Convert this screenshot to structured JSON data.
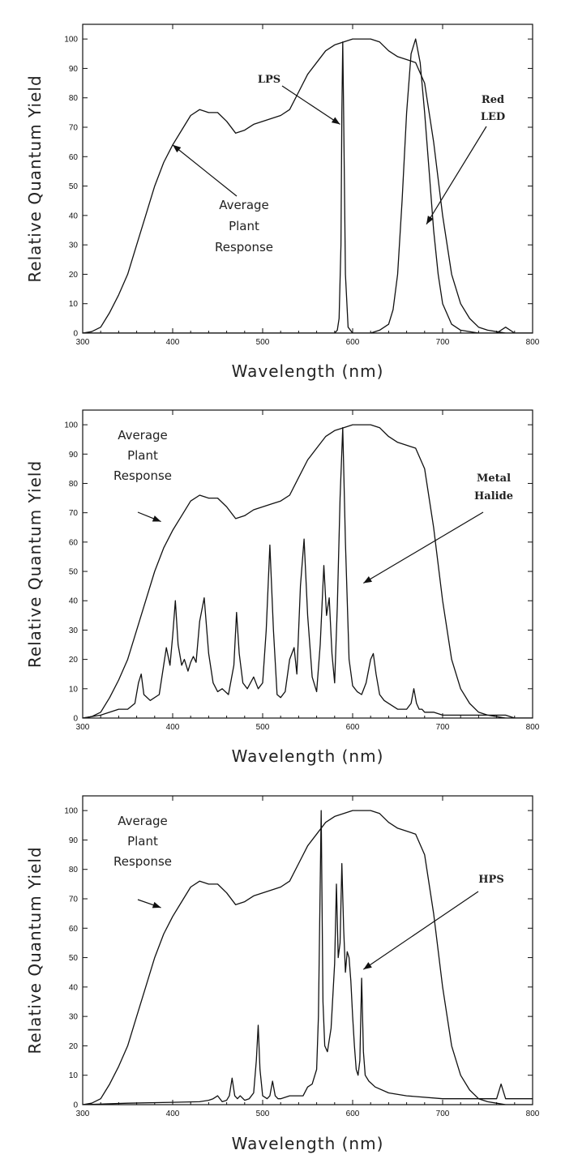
{
  "chart_data": [
    {
      "type": "line",
      "xlabel": "Wavelength (nm)",
      "ylabel": "Relative Quantum Yield",
      "xlim": [
        300,
        800
      ],
      "ylim": [
        0,
        105
      ],
      "xticks": [
        300,
        400,
        500,
        600,
        700,
        800
      ],
      "yticks": [
        0,
        10,
        20,
        30,
        40,
        50,
        60,
        70,
        80,
        90,
        100
      ],
      "grid": false,
      "annotations": [
        {
          "text": "Average",
          "arrow_to": [
            400,
            64
          ]
        },
        {
          "text": "Plant"
        },
        {
          "text": "Response"
        },
        {
          "text": "LPS",
          "arrow_to": [
            586,
            71
          ]
        },
        {
          "text": "Red",
          "arrow_to": [
            682,
            37
          ]
        },
        {
          "text": "LED"
        }
      ],
      "series": [
        {
          "x": [
            300,
            310,
            320,
            330,
            340,
            350,
            360,
            370,
            380,
            390,
            400,
            410,
            420,
            430,
            440,
            450,
            460,
            470,
            480,
            490,
            500,
            510,
            520,
            530,
            540,
            550,
            560,
            570,
            580,
            590,
            600,
            610,
            620,
            630,
            640,
            650,
            660,
            670,
            680,
            690,
            700,
            710,
            720,
            730,
            740,
            750,
            760,
            770,
            780,
            790,
            800
          ],
          "values": [
            0,
            0.5,
            2,
            7,
            13,
            20,
            30,
            40,
            50,
            58,
            64,
            69,
            74,
            76,
            75,
            75,
            72,
            68,
            69,
            71,
            72,
            73,
            74,
            76,
            82,
            88,
            92,
            96,
            98,
            99,
            100,
            100,
            100,
            99,
            96,
            94,
            93,
            92,
            85,
            65,
            40,
            20,
            10,
            5,
            2,
            1,
            0.5,
            0,
            0,
            0,
            0
          ]
        },
        {
          "x": [
            300,
            570,
            575,
            580,
            583,
            585,
            587,
            588,
            589,
            590,
            592,
            595,
            600,
            610,
            800
          ],
          "values": [
            0,
            0,
            0,
            0,
            1,
            5,
            30,
            75,
            99,
            75,
            20,
            2,
            0,
            0,
            0
          ]
        },
        {
          "x": [
            300,
            600,
            620,
            630,
            640,
            645,
            650,
            655,
            660,
            665,
            670,
            675,
            680,
            685,
            690,
            695,
            700,
            710,
            720,
            740,
            760,
            770,
            780,
            800
          ],
          "values": [
            0,
            0,
            0,
            1,
            3,
            8,
            20,
            45,
            75,
            95,
            100,
            92,
            75,
            55,
            35,
            20,
            10,
            3,
            1,
            0,
            0,
            2,
            0,
            0
          ]
        }
      ]
    },
    {
      "type": "line",
      "xlabel": "Wavelength (nm)",
      "ylabel": "Relative Quantum Yield",
      "xlim": [
        300,
        800
      ],
      "ylim": [
        0,
        105
      ],
      "xticks": [
        300,
        400,
        500,
        600,
        700,
        800
      ],
      "yticks": [
        0,
        10,
        20,
        30,
        40,
        50,
        60,
        70,
        80,
        90,
        100
      ],
      "grid": false,
      "annotations": [
        {
          "text": "Average",
          "arrow_to": [
            387,
            67
          ]
        },
        {
          "text": "Plant"
        },
        {
          "text": "Response"
        },
        {
          "text": "Metal",
          "arrow_to": [
            612,
            46
          ]
        },
        {
          "text": "Halide"
        }
      ],
      "series": [
        {
          "x": [
            300,
            310,
            320,
            330,
            340,
            350,
            360,
            370,
            380,
            390,
            400,
            410,
            420,
            430,
            440,
            450,
            460,
            470,
            480,
            490,
            500,
            510,
            520,
            530,
            540,
            550,
            560,
            570,
            580,
            590,
            600,
            610,
            620,
            630,
            640,
            650,
            660,
            670,
            680,
            690,
            700,
            710,
            720,
            730,
            740,
            750,
            760,
            770,
            780,
            790,
            800
          ],
          "values": [
            0,
            0.5,
            2,
            7,
            13,
            20,
            30,
            40,
            50,
            58,
            64,
            69,
            74,
            76,
            75,
            75,
            72,
            68,
            69,
            71,
            72,
            73,
            74,
            76,
            82,
            88,
            92,
            96,
            98,
            99,
            100,
            100,
            100,
            99,
            96,
            94,
            93,
            92,
            85,
            65,
            40,
            20,
            10,
            5,
            2,
            1,
            0.5,
            0,
            0,
            0,
            0
          ]
        },
        {
          "x": [
            300,
            320,
            330,
            340,
            350,
            358,
            362,
            365,
            368,
            375,
            385,
            390,
            393,
            397,
            400,
            403,
            406,
            410,
            413,
            417,
            420,
            423,
            426,
            430,
            435,
            440,
            445,
            450,
            455,
            462,
            468,
            471,
            474,
            478,
            483,
            490,
            495,
            500,
            504,
            508,
            512,
            516,
            520,
            525,
            530,
            535,
            538,
            542,
            546,
            550,
            555,
            560,
            564,
            568,
            571,
            574,
            577,
            580,
            583,
            586,
            589,
            592,
            596,
            600,
            605,
            610,
            615,
            620,
            623,
            626,
            630,
            635,
            640,
            650,
            660,
            665,
            668,
            671,
            674,
            677,
            680,
            690,
            700,
            720,
            750,
            760,
            770,
            780,
            800
          ],
          "values": [
            0,
            1,
            2,
            3,
            3,
            5,
            12,
            15,
            8,
            6,
            8,
            18,
            24,
            18,
            28,
            40,
            25,
            18,
            20,
            16,
            19,
            21,
            19,
            33,
            41,
            22,
            12,
            9,
            10,
            8,
            18,
            36,
            22,
            12,
            10,
            14,
            10,
            12,
            30,
            59,
            30,
            8,
            7,
            9,
            20,
            24,
            15,
            45,
            61,
            35,
            14,
            9,
            25,
            52,
            35,
            41,
            22,
            12,
            38,
            75,
            99,
            60,
            20,
            11,
            9,
            8,
            12,
            20,
            22,
            15,
            8,
            6,
            5,
            3,
            3,
            5,
            10,
            5,
            3,
            3,
            2,
            2,
            1,
            1,
            1,
            1,
            1,
            0,
            0
          ]
        }
      ]
    },
    {
      "type": "line",
      "xlabel": "Wavelength (nm)",
      "ylabel": "Relative Quantum Yield",
      "xlim": [
        300,
        800
      ],
      "ylim": [
        0,
        105
      ],
      "xticks": [
        300,
        400,
        500,
        600,
        700,
        800
      ],
      "yticks": [
        0,
        10,
        20,
        30,
        40,
        50,
        60,
        70,
        80,
        90,
        100
      ],
      "grid": false,
      "annotations": [
        {
          "text": "Average",
          "arrow_to": [
            387,
            67
          ]
        },
        {
          "text": "Plant"
        },
        {
          "text": "Response"
        },
        {
          "text": "HPS",
          "arrow_to": [
            612,
            46
          ]
        }
      ],
      "series": [
        {
          "x": [
            300,
            310,
            320,
            330,
            340,
            350,
            360,
            370,
            380,
            390,
            400,
            410,
            420,
            430,
            440,
            450,
            460,
            470,
            480,
            490,
            500,
            510,
            520,
            530,
            540,
            550,
            560,
            570,
            580,
            590,
            600,
            610,
            620,
            630,
            640,
            650,
            660,
            670,
            680,
            690,
            700,
            710,
            720,
            730,
            740,
            750,
            760,
            770,
            780,
            790,
            800
          ],
          "values": [
            0,
            0.5,
            2,
            7,
            13,
            20,
            30,
            40,
            50,
            58,
            64,
            69,
            74,
            76,
            75,
            75,
            72,
            68,
            69,
            71,
            72,
            73,
            74,
            76,
            82,
            88,
            92,
            96,
            98,
            99,
            100,
            100,
            100,
            99,
            96,
            94,
            93,
            92,
            85,
            65,
            40,
            20,
            10,
            5,
            2,
            1,
            0.5,
            0,
            0,
            0,
            0
          ]
        },
        {
          "x": [
            300,
            350,
            400,
            430,
            440,
            445,
            450,
            455,
            460,
            463,
            466,
            469,
            472,
            475,
            480,
            485,
            490,
            493,
            495,
            497,
            500,
            505,
            508,
            511,
            514,
            517,
            520,
            530,
            545,
            550,
            555,
            560,
            562,
            565,
            567,
            569,
            572,
            576,
            580,
            582,
            584,
            586,
            588,
            590,
            592,
            594,
            596,
            598,
            600,
            602,
            604,
            606,
            608,
            610,
            612,
            614,
            618,
            625,
            640,
            660,
            700,
            750,
            760,
            765,
            770,
            800
          ],
          "values": [
            0,
            0.5,
            0.8,
            1,
            1.5,
            2,
            3,
            1,
            1.5,
            3,
            9,
            3,
            2,
            3,
            1.5,
            2,
            4,
            15,
            27,
            12,
            3,
            2,
            3,
            8,
            3,
            2,
            2,
            3,
            3,
            6,
            7,
            12,
            30,
            100,
            35,
            20,
            18,
            26,
            48,
            75,
            50,
            55,
            82,
            60,
            45,
            52,
            50,
            42,
            30,
            20,
            12,
            10,
            15,
            43,
            18,
            10,
            8,
            6,
            4,
            3,
            2,
            2,
            2,
            7,
            2,
            2
          ]
        }
      ]
    }
  ]
}
